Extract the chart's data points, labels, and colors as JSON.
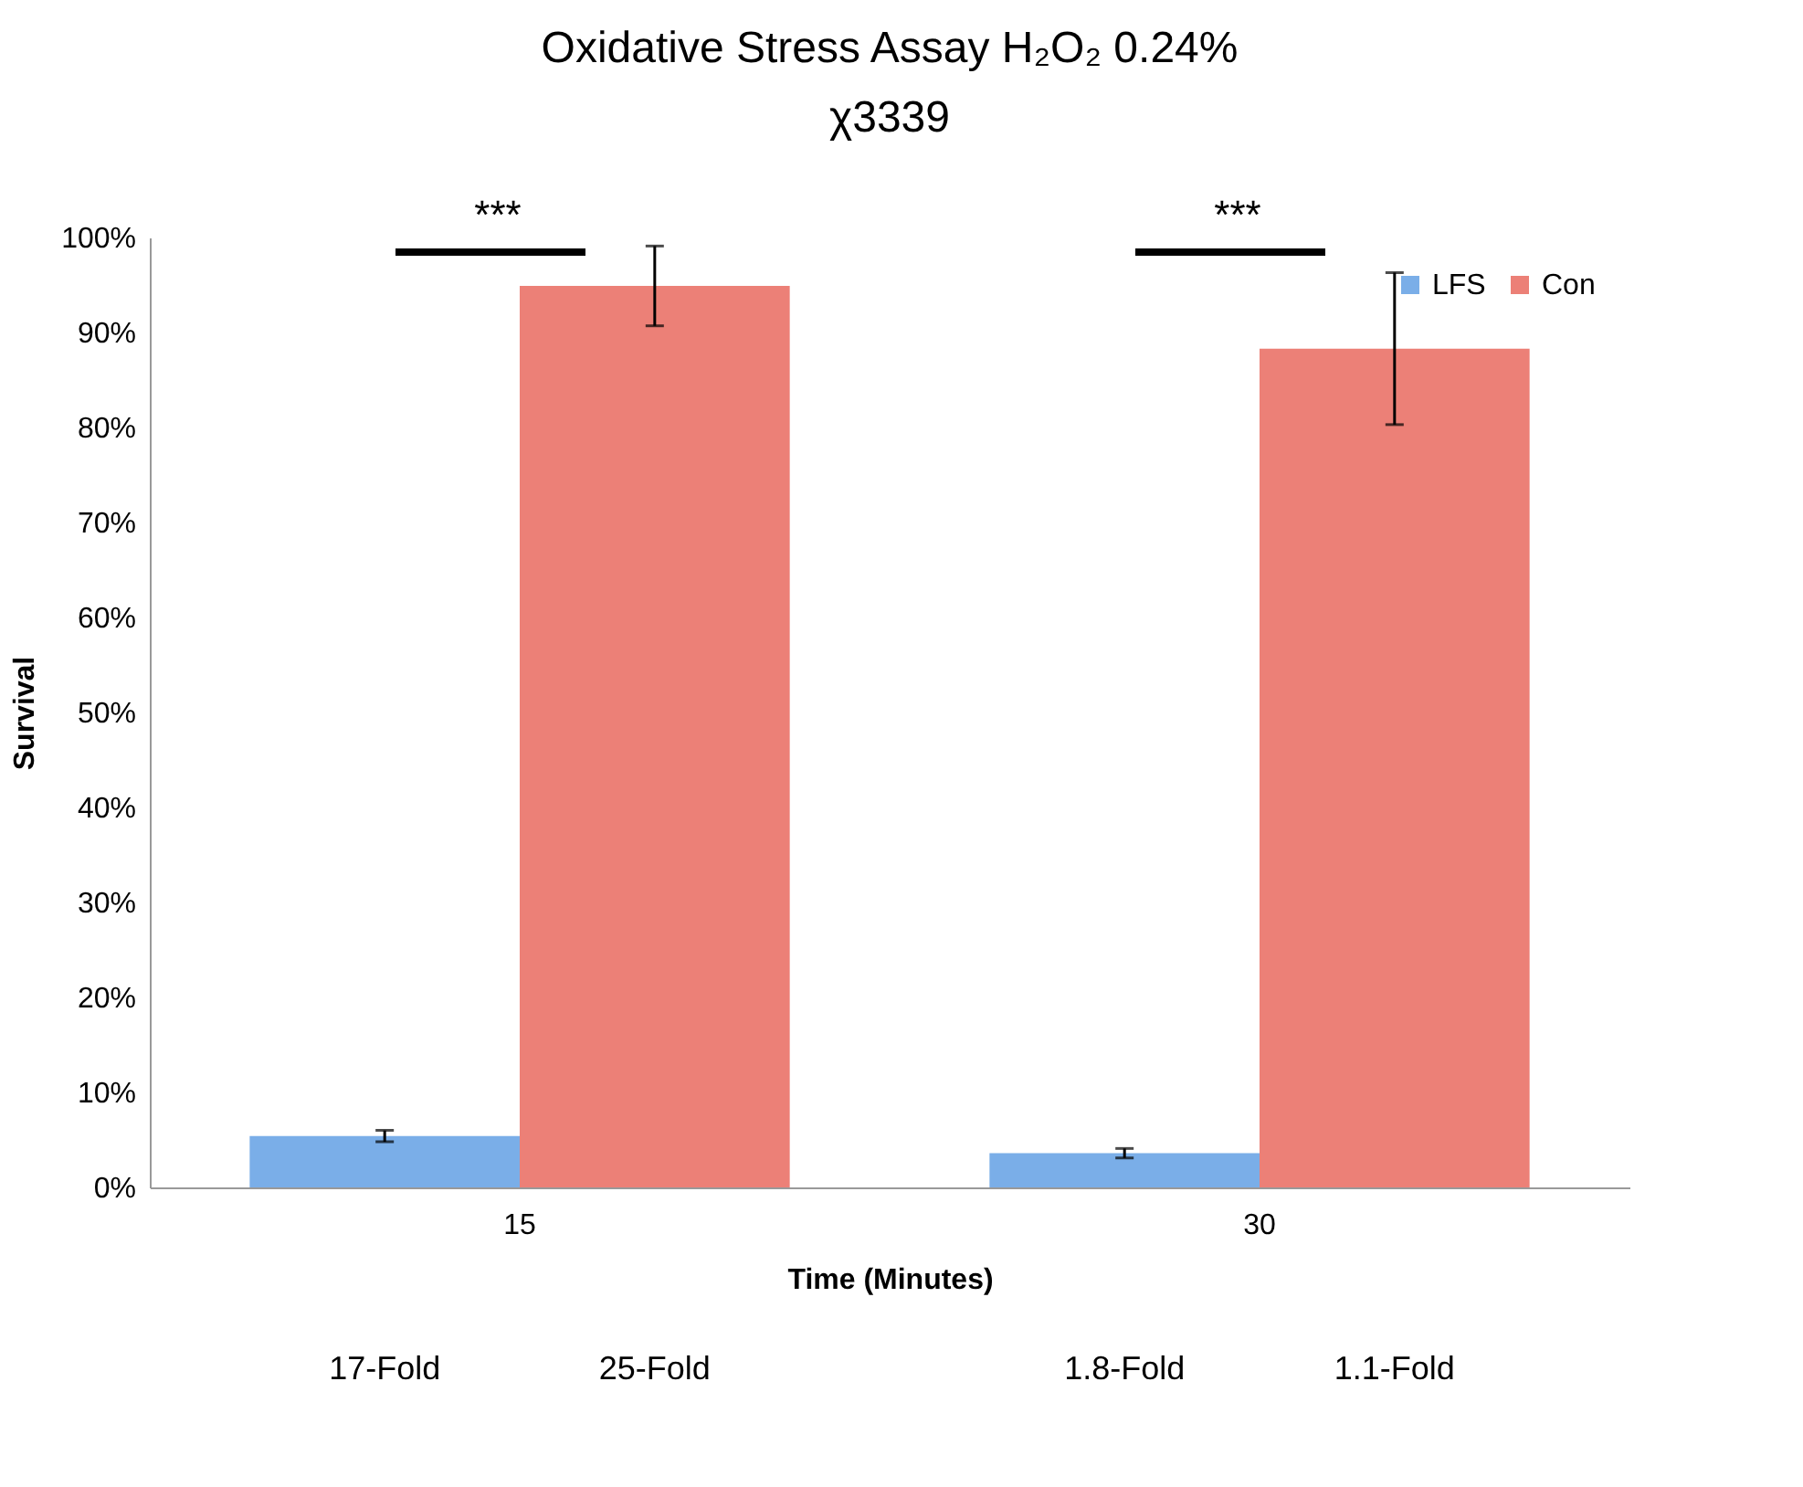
{
  "chart_data": {
    "type": "bar",
    "title": "Oxidative Stress Assay H₂O₂ 0.24%",
    "subtitle": "χ3339",
    "xlabel": "Time (Minutes)",
    "ylabel": "Survival",
    "categories": [
      "15",
      "30"
    ],
    "series": [
      {
        "name": "LFS",
        "color": "#7aaee8",
        "values": [
          5.4,
          3.6
        ],
        "errors": [
          0.6,
          0.5
        ]
      },
      {
        "name": "Con",
        "color": "#ec8077",
        "values": [
          94.9,
          88.3
        ],
        "errors": [
          4.2,
          8.0
        ]
      }
    ],
    "ylim": [
      0,
      100
    ],
    "yticks": [
      {
        "value": 0,
        "label": "0%"
      },
      {
        "value": 10,
        "label": "10%"
      },
      {
        "value": 20,
        "label": "20%"
      },
      {
        "value": 30,
        "label": "30%"
      },
      {
        "value": 40,
        "label": "40%"
      },
      {
        "value": 50,
        "label": "50%"
      },
      {
        "value": 60,
        "label": "60%"
      },
      {
        "value": 70,
        "label": "70%"
      },
      {
        "value": 80,
        "label": "80%"
      },
      {
        "value": 90,
        "label": "90%"
      },
      {
        "value": 100,
        "label": "100%"
      }
    ],
    "grid": false,
    "legend": "top right",
    "annotations": [
      "***",
      "***",
      "17-Fold",
      "25-Fold",
      "1.8-Fold",
      "1.1-Fold"
    ]
  }
}
